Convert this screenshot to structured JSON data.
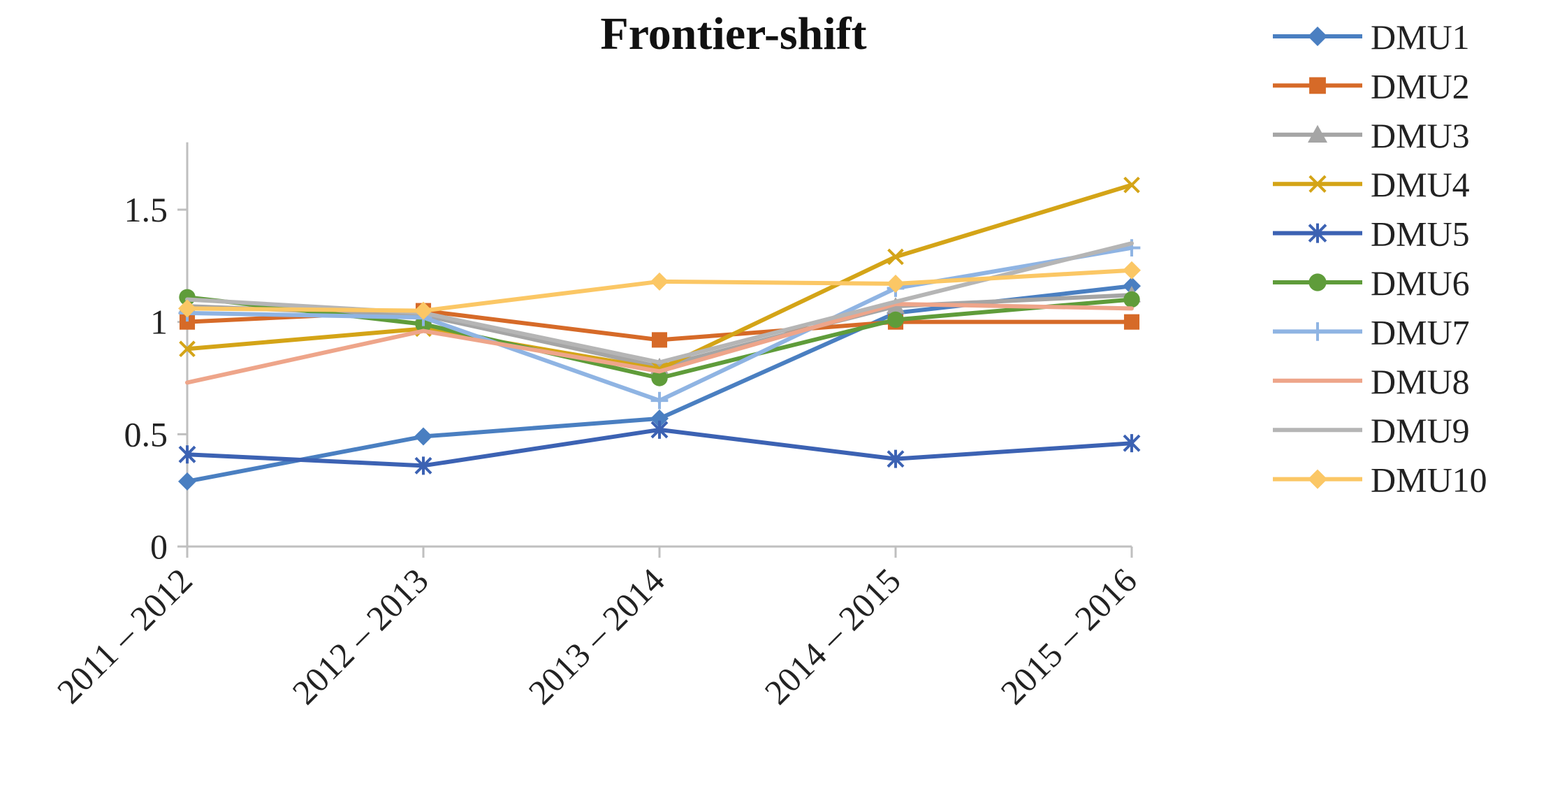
{
  "colors": {
    "axis": "#bfbfbf",
    "text": "#222222",
    "background": "#ffffff"
  },
  "chart_data": {
    "type": "line",
    "title": "Frontier-shift",
    "xlabel": "",
    "ylabel": "",
    "categories": [
      "2011 – 2012",
      "2012 – 2013",
      "2013 – 2014",
      "2014 – 2015",
      "2015 – 2016"
    ],
    "ylim": [
      0,
      1.8
    ],
    "yticks": [
      {
        "value": 0,
        "label": "0"
      },
      {
        "value": 0.5,
        "label": "0.5"
      },
      {
        "value": 1,
        "label": "1"
      },
      {
        "value": 1.5,
        "label": "1.5"
      }
    ],
    "grid": false,
    "legend_position": "right",
    "series": [
      {
        "name": "DMU1",
        "color": "#4a7fc1",
        "marker": "diamond",
        "values": [
          0.29,
          0.49,
          0.57,
          1.04,
          1.16
        ]
      },
      {
        "name": "DMU2",
        "color": "#d66a28",
        "marker": "square",
        "values": [
          1.0,
          1.05,
          0.92,
          1.0,
          1.0
        ]
      },
      {
        "name": "DMU3",
        "color": "#a5a5a5",
        "marker": "triangle",
        "values": [
          1.07,
          1.03,
          0.8,
          1.07,
          1.12
        ]
      },
      {
        "name": "DMU4",
        "color": "#d4a417",
        "marker": "x",
        "values": [
          0.88,
          0.97,
          0.79,
          1.29,
          1.61
        ]
      },
      {
        "name": "DMU5",
        "color": "#3c62b3",
        "marker": "asterisk",
        "values": [
          0.41,
          0.36,
          0.52,
          0.39,
          0.46
        ]
      },
      {
        "name": "DMU6",
        "color": "#5f9c3a",
        "marker": "circle",
        "values": [
          1.11,
          0.99,
          0.75,
          1.01,
          1.1
        ]
      },
      {
        "name": "DMU7",
        "color": "#8fb4e3",
        "marker": "plus",
        "values": [
          1.04,
          1.02,
          0.65,
          1.15,
          1.33
        ]
      },
      {
        "name": "DMU8",
        "color": "#eea58a",
        "marker": "none",
        "values": [
          0.73,
          0.96,
          0.78,
          1.08,
          1.06
        ]
      },
      {
        "name": "DMU9",
        "color": "#b5b5b5",
        "marker": "none",
        "values": [
          1.1,
          1.04,
          0.82,
          1.09,
          1.35
        ]
      },
      {
        "name": "DMU10",
        "color": "#fbc765",
        "marker": "diamond",
        "values": [
          1.06,
          1.05,
          1.18,
          1.17,
          1.23
        ]
      }
    ]
  }
}
